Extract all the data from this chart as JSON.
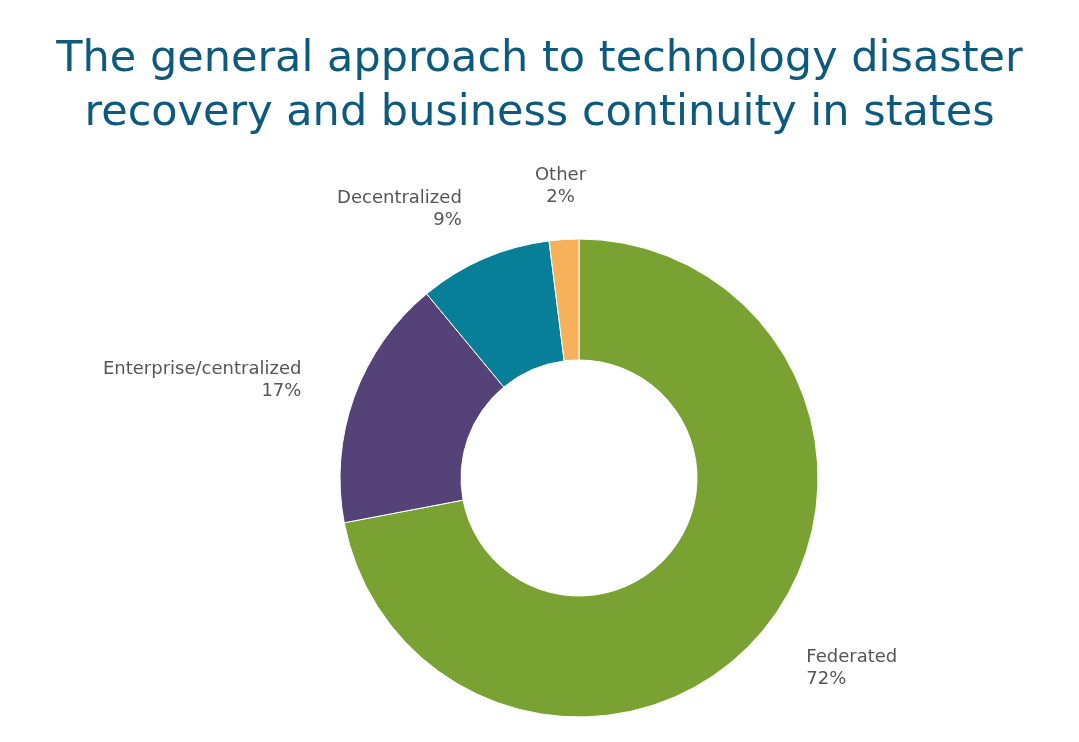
{
  "chart_data": {
    "type": "donut",
    "title": "The general approach to technology disaster recovery and business continuity in states",
    "categories": [
      "Federated",
      "Enterprise/centralized",
      "Decentralized",
      "Other"
    ],
    "values": [
      72,
      17,
      9,
      2
    ],
    "value_labels": [
      "72%",
      "17%",
      "9%",
      "2%"
    ],
    "colors": [
      "#7aa232",
      "#554278",
      "#077f99",
      "#f6b15a"
    ]
  }
}
